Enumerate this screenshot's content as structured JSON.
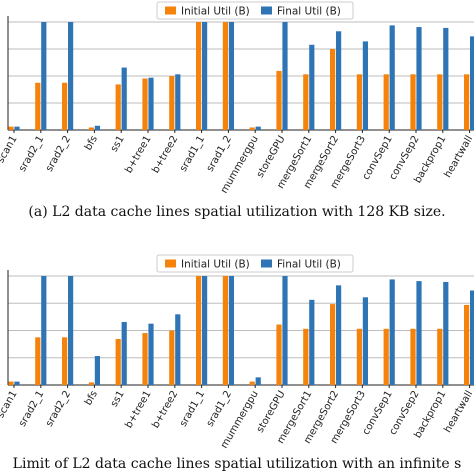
{
  "chart_data": [
    {
      "type": "bar",
      "title": "",
      "xlabel": "",
      "ylabel": "",
      "ylim": [
        0,
        128
      ],
      "grid": true,
      "legend_position": "top-right",
      "caption": "(a) L2 data cache lines spatial utilization with 128 KB size.",
      "categories": [
        "scan1",
        "srad2_1",
        "srad2_2",
        "bfs",
        "ss1",
        "b+tree1",
        "b+tree2",
        "srad1_1",
        "srad1_2",
        "mummergpu",
        "storeGPU",
        "mergeSort1",
        "mergeSort2",
        "mergeSort3",
        "convSep1",
        "convSep2",
        "backprop1",
        "heartwall"
      ],
      "series": [
        {
          "name": "Initial Util (B)",
          "color": "#f5820a",
          "values": [
            4,
            56,
            56,
            3,
            54,
            61,
            64,
            128,
            128,
            3,
            70,
            66,
            96,
            66,
            66,
            66,
            66,
            66
          ]
        },
        {
          "name": "Final Util (B)",
          "color": "#2f75b5",
          "values": [
            4,
            128,
            128,
            5,
            74,
            62,
            66,
            128,
            128,
            4,
            128,
            101,
            117,
            105,
            124,
            122,
            121,
            111
          ]
        }
      ]
    },
    {
      "type": "bar",
      "title": "",
      "xlabel": "",
      "ylabel": "",
      "ylim": [
        0,
        128
      ],
      "grid": true,
      "legend_position": "top-right",
      "caption": "Limit of L2 data cache lines spatial utilization with an infinite s",
      "categories": [
        "scan1",
        "srad2_1",
        "srad2_2",
        "bfs",
        "ss1",
        "b+tree1",
        "b+tree2",
        "srad1_1",
        "srad1_2",
        "mummergpu",
        "storeGPU",
        "mergeSort1",
        "mergeSort2",
        "mergeSort3",
        "convSep1",
        "convSep2",
        "backprop1",
        "heartwall"
      ],
      "series": [
        {
          "name": "Initial Util (B)",
          "color": "#f5820a",
          "values": [
            4,
            56,
            56,
            3,
            54,
            61,
            64,
            128,
            128,
            4,
            71,
            66,
            95,
            66,
            66,
            66,
            66,
            94
          ]
        },
        {
          "name": "Final Util (B)",
          "color": "#2f75b5",
          "values": [
            4,
            128,
            128,
            34,
            74,
            72,
            83,
            128,
            128,
            9,
            128,
            100,
            117,
            103,
            124,
            122,
            121,
            111
          ]
        }
      ]
    }
  ]
}
